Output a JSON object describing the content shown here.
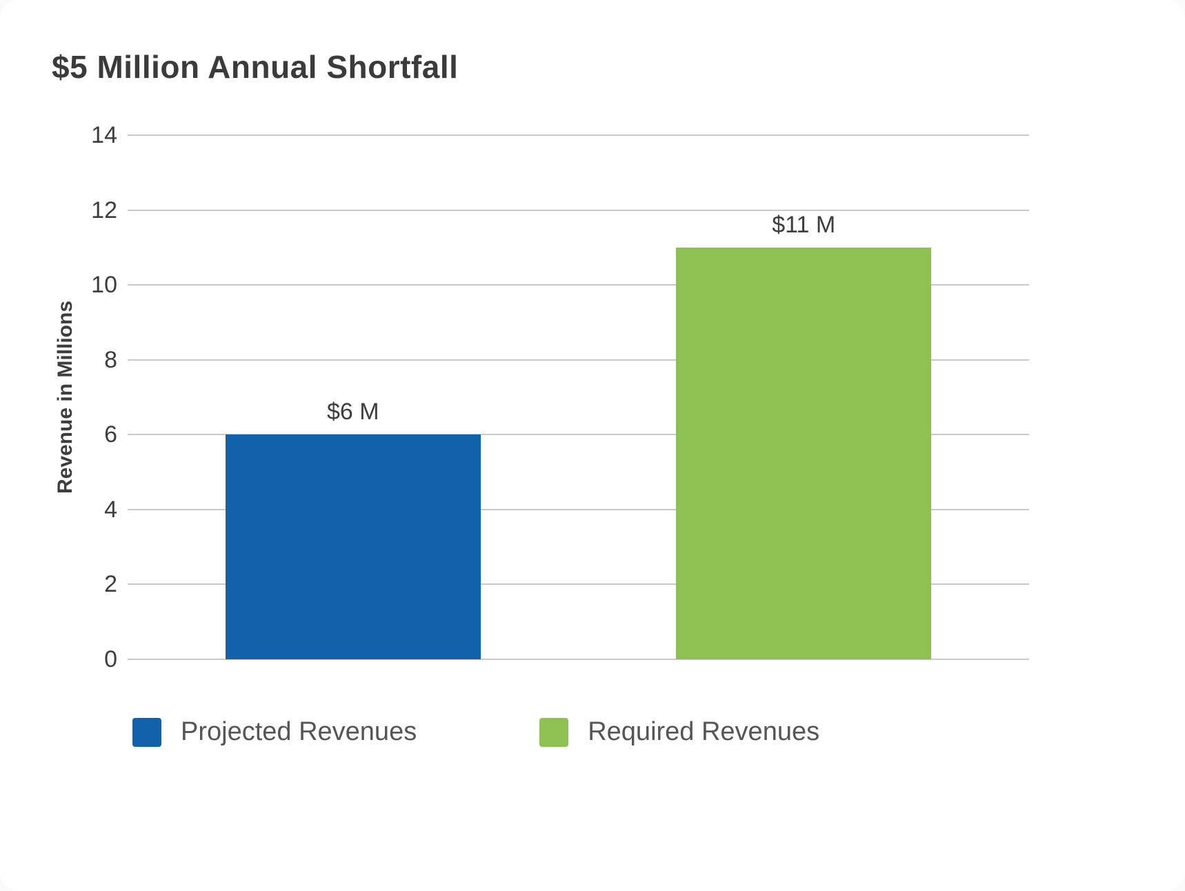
{
  "chart_data": {
    "type": "bar",
    "title": "$5 Million Annual Shortfall",
    "xlabel": "",
    "ylabel": "Revenue in Millions",
    "ylim": [
      0,
      14
    ],
    "yticks": [
      0,
      2,
      4,
      6,
      8,
      10,
      12,
      14
    ],
    "grid": true,
    "legend_position": "bottom",
    "categories": [
      "Projected Revenues",
      "Required Revenues"
    ],
    "series": [
      {
        "name": "Projected Revenues",
        "value": 6,
        "label": "$6 M",
        "color": "#1262AB"
      },
      {
        "name": "Required Revenues",
        "value": 11,
        "label": "$11 M",
        "color": "#8DC152"
      }
    ],
    "colors": {
      "projected": "#1262AB",
      "required": "#8DC152",
      "gridline": "#C9C9C9"
    }
  }
}
